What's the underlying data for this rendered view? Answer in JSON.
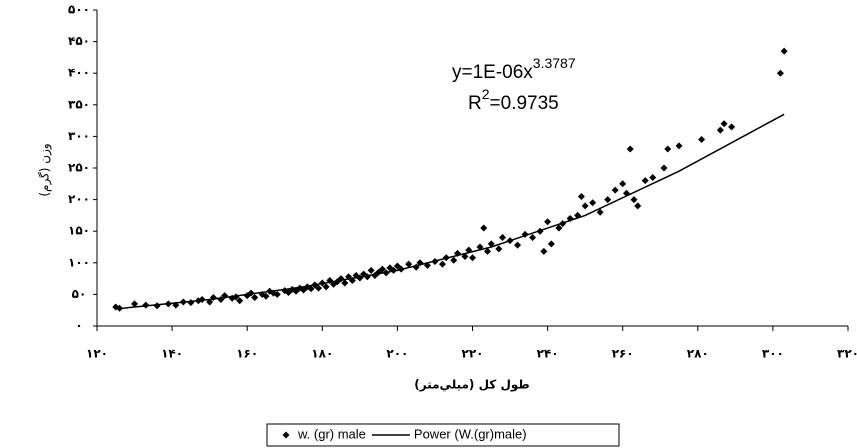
{
  "chart_data": {
    "type": "scatter",
    "xlabel": "طول كل (ميلي‌متر)",
    "ylabel": "وزن (گرم)",
    "annotations": [
      {
        "text": "y=1E-06x",
        "sup": "3.3787"
      },
      {
        "text": "R",
        "sup": "2",
        "rest": "=0.9735"
      }
    ],
    "xlim": [
      120,
      320
    ],
    "xticks": [
      {
        "value": 120,
        "label": "۱۲۰"
      },
      {
        "value": 140,
        "label": "۱۴۰"
      },
      {
        "value": 160,
        "label": "۱۶۰"
      },
      {
        "value": 180,
        "label": "۱۸۰"
      },
      {
        "value": 200,
        "label": "۲۰۰"
      },
      {
        "value": 220,
        "label": "۲۲۰"
      },
      {
        "value": 240,
        "label": "۲۴۰"
      },
      {
        "value": 260,
        "label": "۲۶۰"
      },
      {
        "value": 280,
        "label": "۲۸۰"
      },
      {
        "value": 300,
        "label": "۳۰۰"
      },
      {
        "value": 320,
        "label": "۳۲۰"
      }
    ],
    "ylim": [
      0,
      500
    ],
    "yticks": [
      {
        "value": 0,
        "label": "۰"
      },
      {
        "value": 50,
        "label": "۵۰"
      },
      {
        "value": 100,
        "label": "۱۰۰"
      },
      {
        "value": 150,
        "label": "۱۵۰"
      },
      {
        "value": 200,
        "label": "۲۰۰"
      },
      {
        "value": 250,
        "label": "۲۵۰"
      },
      {
        "value": 300,
        "label": "۳۰۰"
      },
      {
        "value": 350,
        "label": "۳۵۰"
      },
      {
        "value": 400,
        "label": "۴۰۰"
      },
      {
        "value": 450,
        "label": "۴۵۰"
      },
      {
        "value": 500,
        "label": "۵۰۰"
      }
    ],
    "series": [
      {
        "name": "w. (gr) male",
        "color": "#000000",
        "marker": "diamond",
        "x": [
          125,
          126,
          130,
          133,
          136,
          139,
          141,
          143,
          145,
          147,
          148,
          150,
          151,
          153,
          154,
          156,
          157,
          158,
          160,
          161,
          162,
          164,
          165,
          166,
          167,
          168,
          170,
          171,
          172,
          173,
          174,
          175,
          176,
          177,
          178,
          179,
          180,
          181,
          182,
          183,
          184,
          185,
          186,
          187,
          188,
          189,
          190,
          191,
          192,
          193,
          194,
          195,
          196,
          197,
          198,
          199,
          200,
          201,
          203,
          205,
          206,
          208,
          210,
          212,
          213,
          215,
          216,
          218,
          219,
          220,
          222,
          223,
          224,
          225,
          227,
          228,
          230,
          232,
          234,
          236,
          238,
          239,
          240,
          241,
          243,
          244,
          246,
          248,
          249,
          250,
          252,
          254,
          256,
          258,
          260,
          261,
          262,
          263,
          264,
          266,
          268,
          271,
          272,
          275,
          281,
          286,
          287,
          289,
          302,
          303
        ],
        "values": [
          30,
          28,
          35,
          33,
          32,
          35,
          33,
          38,
          37,
          40,
          42,
          38,
          45,
          42,
          48,
          44,
          46,
          40,
          48,
          52,
          45,
          50,
          47,
          55,
          52,
          50,
          56,
          53,
          58,
          55,
          60,
          57,
          62,
          59,
          65,
          60,
          68,
          62,
          72,
          66,
          70,
          75,
          68,
          78,
          72,
          80,
          76,
          82,
          78,
          88,
          80,
          85,
          90,
          84,
          92,
          88,
          95,
          90,
          98,
          93,
          100,
          96,
          102,
          98,
          108,
          104,
          115,
          110,
          120,
          108,
          125,
          155,
          118,
          130,
          122,
          140,
          135,
          128,
          145,
          140,
          150,
          118,
          165,
          130,
          155,
          162,
          170,
          175,
          205,
          190,
          195,
          180,
          200,
          215,
          225,
          210,
          280,
          200,
          190,
          230,
          235,
          250,
          280,
          285,
          295,
          310,
          320,
          315,
          400,
          435
        ]
      },
      {
        "name": "Power (W.(gr)male)",
        "type": "line",
        "color": "#000000",
        "x": [
          125,
          150,
          175,
          200,
          225,
          250,
          275,
          303
        ],
        "values": [
          27,
          42,
          62,
          88,
          125,
          175,
          245,
          335
        ]
      }
    ]
  }
}
